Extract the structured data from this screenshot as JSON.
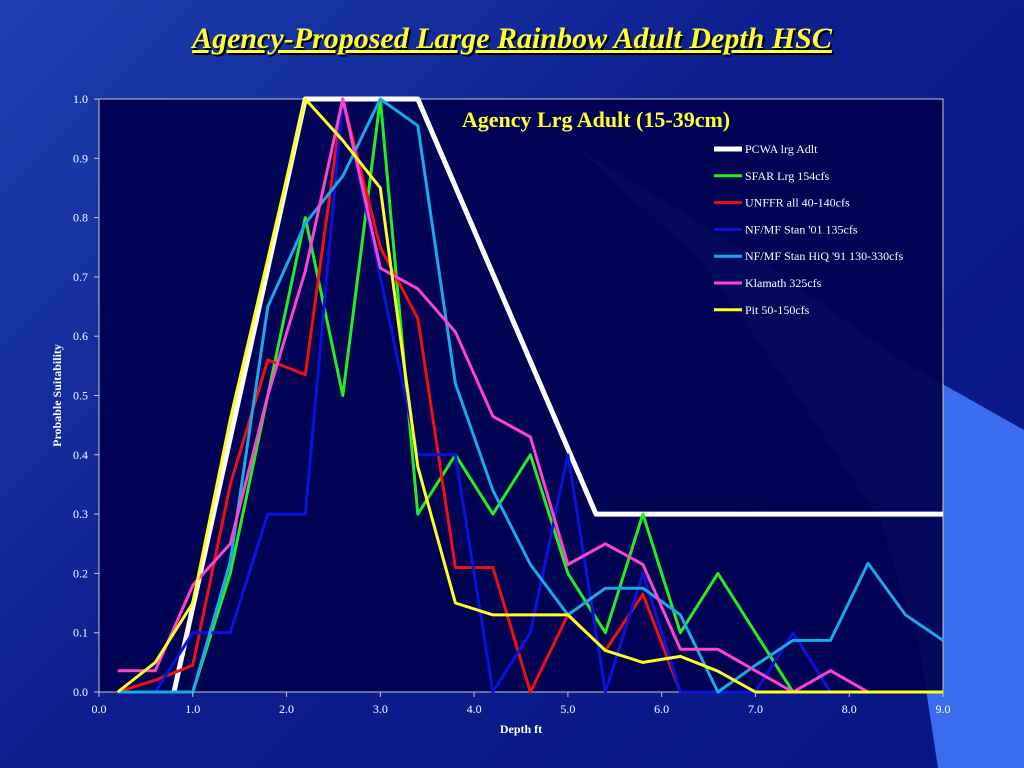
{
  "slide": {
    "title": "Agency-Proposed Large Rainbow Adult Depth HSC"
  },
  "chart_data": {
    "type": "line",
    "title": "Agency Lrg Adult (15-39cm)",
    "xlabel": "Depth ft",
    "ylabel": "Probable Suitability",
    "xlim": [
      0,
      9
    ],
    "ylim": [
      0,
      1
    ],
    "xticks": [
      "0.0",
      "1.0",
      "2.0",
      "3.0",
      "4.0",
      "5.0",
      "6.0",
      "7.0",
      "8.0",
      "9.0"
    ],
    "yticks": [
      "0.0",
      "0.1",
      "0.2",
      "0.3",
      "0.4",
      "0.5",
      "0.6",
      "0.7",
      "0.8",
      "0.9",
      "1.0"
    ],
    "grid": false,
    "legend_position": "top-right",
    "title_color": "#ffff33",
    "plot_background": "#000050",
    "series": [
      {
        "name": "PCWA lrg Adlt",
        "color": "#ffffff",
        "width": 5,
        "x": [
          0.8,
          2.2,
          3.4,
          5.3,
          9.0
        ],
        "y": [
          0,
          1,
          1,
          0.3,
          0.3
        ]
      },
      {
        "name": "SFAR Lrg  154cfs",
        "color": "#22ee22",
        "width": 3,
        "x": [
          0.2,
          0.6,
          1.0,
          1.4,
          1.8,
          2.2,
          2.6,
          3.0,
          3.4,
          3.8,
          4.2,
          4.6,
          5.0,
          5.4,
          5.8,
          6.2,
          6.6,
          7.0,
          7.4,
          9.0
        ],
        "y": [
          0,
          0,
          0,
          0.2,
          0.5,
          0.8,
          0.5,
          1.0,
          0.3,
          0.4,
          0.3,
          0.4,
          0.2,
          0.1,
          0.3,
          0.1,
          0.2,
          0.1,
          0,
          0
        ]
      },
      {
        "name": "UNFFR all 40-140cfs",
        "color": "#ee1111",
        "width": 3,
        "x": [
          0.2,
          0.6,
          1.0,
          1.4,
          1.8,
          2.2,
          2.6,
          3.0,
          3.4,
          3.8,
          4.2,
          4.6,
          5.0,
          5.4,
          5.8,
          6.2,
          9.0
        ],
        "y": [
          0,
          0.02,
          0.045,
          0.35,
          0.56,
          0.535,
          1.0,
          0.75,
          0.63,
          0.21,
          0.21,
          0,
          0.13,
          0.07,
          0.165,
          0,
          0
        ]
      },
      {
        "name": "NF/MF Stan '01 135cfs",
        "color": "#0a14d8",
        "width": 3,
        "x": [
          0.2,
          0.6,
          1.0,
          1.4,
          1.8,
          2.2,
          2.6,
          3.0,
          3.4,
          3.8,
          4.2,
          4.6,
          5.0,
          5.4,
          5.8,
          6.2,
          7.0,
          7.4,
          7.8,
          9.0
        ],
        "y": [
          0,
          0,
          0.1,
          0.1,
          0.3,
          0.3,
          1.0,
          0.7,
          0.4,
          0.4,
          0,
          0.1,
          0.4,
          0,
          0.2,
          0,
          0,
          0.1,
          0,
          0
        ]
      },
      {
        "name": "NF/MF Stan HiQ '91 130-330cfs",
        "color": "#1aa8e8",
        "width": 3,
        "x": [
          0.2,
          0.6,
          1.0,
          1.4,
          1.8,
          2.2,
          2.6,
          3.0,
          3.4,
          3.8,
          4.2,
          4.6,
          5.0,
          5.4,
          5.8,
          6.2,
          6.6,
          7.0,
          7.4,
          7.8,
          8.2,
          8.6,
          9.0
        ],
        "y": [
          0,
          0,
          0,
          0.22,
          0.65,
          0.79,
          0.87,
          1.0,
          0.955,
          0.52,
          0.34,
          0.215,
          0.13,
          0.175,
          0.175,
          0.13,
          0,
          0.045,
          0.087,
          0.087,
          0.217,
          0.13,
          0.087
        ]
      },
      {
        "name": "Klamath 325cfs",
        "color": "#ff44cc",
        "width": 3,
        "x": [
          0.2,
          0.6,
          1.0,
          1.4,
          1.8,
          2.2,
          2.6,
          3.0,
          3.4,
          3.8,
          4.2,
          4.6,
          5.0,
          5.4,
          5.8,
          6.2,
          6.6,
          7.0,
          7.4,
          7.8,
          8.2,
          9.0
        ],
        "y": [
          0.036,
          0.036,
          0.18,
          0.25,
          0.5,
          0.71,
          1.0,
          0.715,
          0.68,
          0.607,
          0.465,
          0.43,
          0.215,
          0.25,
          0.215,
          0.072,
          0.072,
          0.036,
          0,
          0.036,
          0,
          0
        ]
      },
      {
        "name": "Pit 50-150cfs",
        "color": "#ffff22",
        "width": 3,
        "x": [
          0.2,
          0.6,
          1.0,
          1.4,
          1.8,
          2.2,
          2.6,
          3.0,
          3.4,
          3.8,
          4.2,
          4.6,
          5.0,
          5.4,
          5.8,
          6.2,
          6.6,
          7.0,
          9.0
        ],
        "y": [
          0,
          0.05,
          0.15,
          0.46,
          0.73,
          1.0,
          0.93,
          0.85,
          0.38,
          0.15,
          0.13,
          0.13,
          0.13,
          0.07,
          0.05,
          0.06,
          0.035,
          0,
          0
        ]
      }
    ]
  }
}
